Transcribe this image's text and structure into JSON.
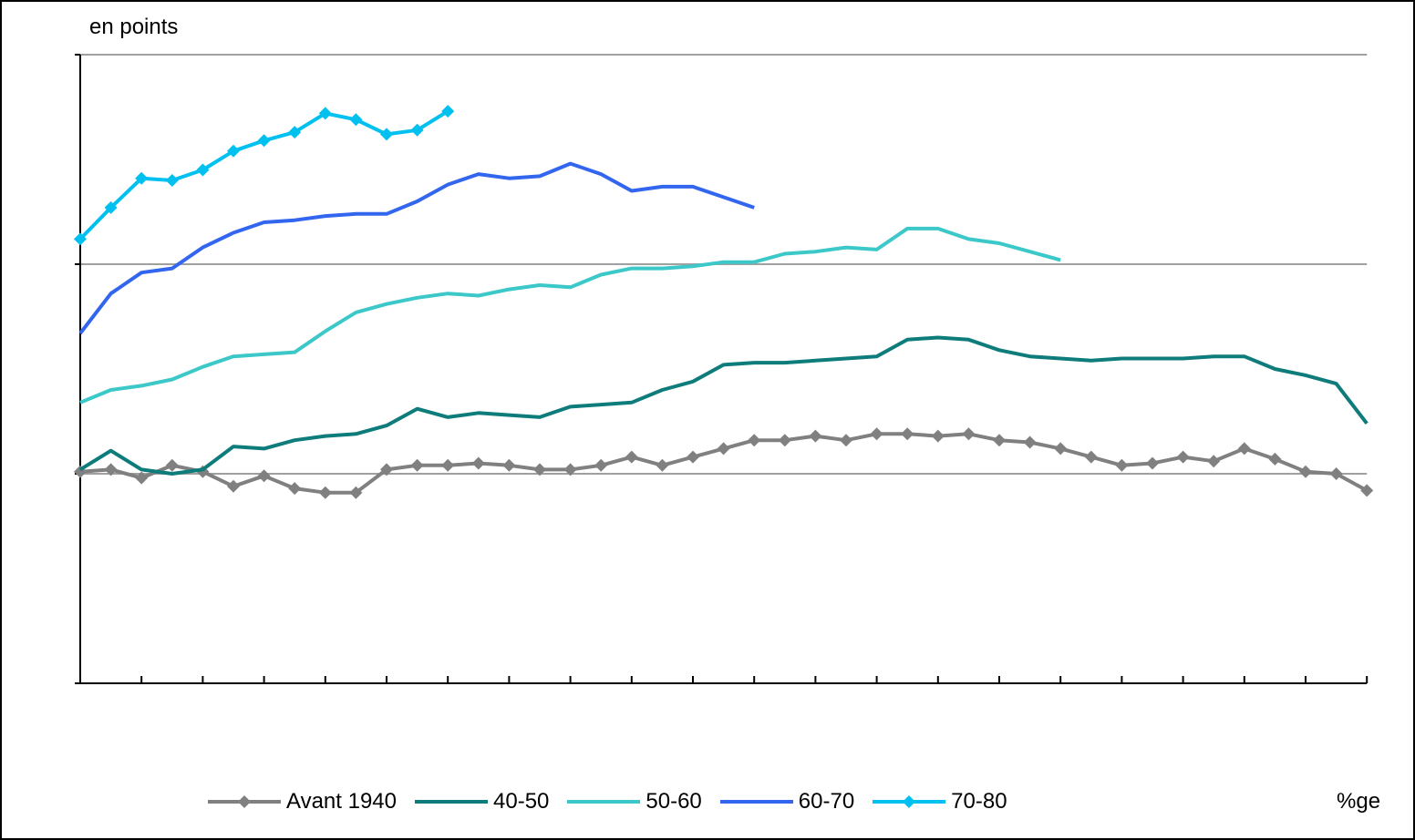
{
  "chart_data": {
    "type": "line",
    "title_fragment": "",
    "ylabel": "en points",
    "xlabel": "%ge",
    "ylim": [
      -1,
      2
    ],
    "grid": "horizontal",
    "legend_placement": "bottom",
    "series": [
      {
        "name": "Avant 1940",
        "color": "#808080",
        "marker": "diamond",
        "values": [
          0.01,
          0.02,
          -0.02,
          0.04,
          0.01,
          -0.06,
          -0.01,
          -0.07,
          -0.09,
          -0.09,
          0.02,
          0.04,
          0.04,
          0.05,
          0.04,
          0.02,
          0.02,
          0.04,
          0.08,
          0.04,
          0.08,
          0.12,
          0.16,
          0.16,
          0.18,
          0.16,
          0.19,
          0.19,
          0.18,
          0.19,
          0.16,
          0.15,
          0.12,
          0.08,
          0.04,
          0.05,
          0.08,
          0.06,
          0.12,
          0.07,
          0.01,
          0.0,
          -0.08
        ]
      },
      {
        "name": "40-50",
        "color": "#0e7c7b",
        "marker": "none",
        "values": [
          0.02,
          0.11,
          0.02,
          0.0,
          0.02,
          0.13,
          0.12,
          0.16,
          0.18,
          0.19,
          0.23,
          0.31,
          0.27,
          0.29,
          0.28,
          0.27,
          0.32,
          0.33,
          0.34,
          0.4,
          0.44,
          0.52,
          0.53,
          0.53,
          0.54,
          0.55,
          0.56,
          0.64,
          0.65,
          0.64,
          0.59,
          0.56,
          0.55,
          0.54,
          0.55,
          0.55,
          0.55,
          0.56,
          0.56,
          0.5,
          0.47,
          0.43,
          0.24
        ]
      },
      {
        "name": "50-60",
        "color": "#3cc8c8",
        "marker": "none",
        "values": [
          0.34,
          0.4,
          0.42,
          0.45,
          0.51,
          0.56,
          0.57,
          0.58,
          0.68,
          0.77,
          0.81,
          0.84,
          0.86,
          0.85,
          0.88,
          0.9,
          0.89,
          0.95,
          0.98,
          0.98,
          0.99,
          1.01,
          1.01,
          1.05,
          1.06,
          1.08,
          1.07,
          1.17,
          1.17,
          1.12,
          1.1,
          1.06,
          1.02
        ]
      },
      {
        "name": "60-70",
        "color": "#3366ee",
        "marker": "none",
        "values": [
          0.67,
          0.86,
          0.96,
          0.98,
          1.08,
          1.15,
          1.2,
          1.21,
          1.23,
          1.24,
          1.24,
          1.3,
          1.38,
          1.43,
          1.41,
          1.42,
          1.48,
          1.43,
          1.35,
          1.37,
          1.37,
          1.32,
          1.27
        ]
      },
      {
        "name": "70-80",
        "color": "#00c0f0",
        "marker": "diamond",
        "values": [
          1.12,
          1.27,
          1.41,
          1.4,
          1.45,
          1.54,
          1.59,
          1.63,
          1.72,
          1.69,
          1.62,
          1.64,
          1.73
        ]
      }
    ]
  }
}
